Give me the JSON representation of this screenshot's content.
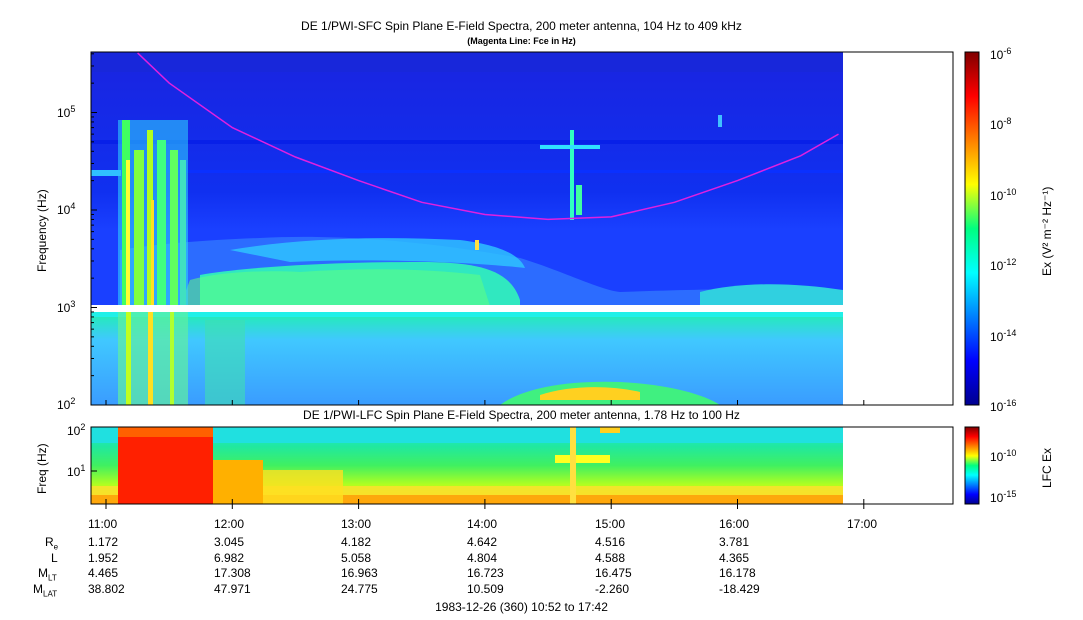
{
  "top_title": "DE 1/PWI-SFC  Spin Plane E-Field Spectra, 200 meter antenna, 104 Hz to 409 kHz",
  "top_subtitle": "(Magenta Line: Fce in Hz)",
  "bottom_title": "DE 1/PWI-LFC  Spin Plane E-Field Spectra, 200 meter antenna, 1.78 Hz to 100 Hz",
  "top_ylabel": "Frequency (Hz)",
  "bottom_ylabel": "Freq (Hz)",
  "top_cbar_label": "Ex (V² m⁻² Hz⁻¹)",
  "bottom_cbar_label": "LFC Ex",
  "footer": "1983-12-26 (360) 10:52 to 17:42",
  "chart_data": [
    {
      "type": "heatmap",
      "title": "DE 1/PWI-SFC  Spin Plane E-Field Spectra, 200 meter antenna, 104 Hz to 409 kHz",
      "subtitle": "(Magenta Line: Fce in Hz)",
      "ylabel": "Frequency (Hz)",
      "yscale": "log",
      "ylim": [
        100,
        409000
      ],
      "x_ticks": [
        "11:00",
        "12:00",
        "13:00",
        "14:00",
        "15:00",
        "16:00",
        "17:00"
      ],
      "y_ticks": [
        {
          "base": "10",
          "exp": "2",
          "value": 100
        },
        {
          "base": "10",
          "exp": "3",
          "value": 1000
        },
        {
          "base": "10",
          "exp": "4",
          "value": 10000
        },
        {
          "base": "10",
          "exp": "5",
          "value": 100000
        }
      ],
      "colorbar": {
        "label": "Ex (V² m⁻² Hz⁻¹)",
        "scale": "log",
        "range": [
          1e-16,
          1e-06
        ],
        "ticks": [
          {
            "base": "10",
            "exp": "-6"
          },
          {
            "base": "10",
            "exp": "-8"
          },
          {
            "base": "10",
            "exp": "-10"
          },
          {
            "base": "10",
            "exp": "-12"
          },
          {
            "base": "10",
            "exp": "-14"
          },
          {
            "base": "10",
            "exp": "-16"
          }
        ]
      },
      "series": [
        {
          "name": "Fce in Hz",
          "color": "#e020e0",
          "points": [
            {
              "x": "11:15",
              "y": 409000
            },
            {
              "x": "11:30",
              "y": 200000
            },
            {
              "x": "12:00",
              "y": 70000
            },
            {
              "x": "12:30",
              "y": 35000
            },
            {
              "x": "13:00",
              "y": 20000
            },
            {
              "x": "13:30",
              "y": 12000
            },
            {
              "x": "14:00",
              "y": 9000
            },
            {
              "x": "14:30",
              "y": 8000
            },
            {
              "x": "15:00",
              "y": 8500
            },
            {
              "x": "15:30",
              "y": 12000
            },
            {
              "x": "16:00",
              "y": 20000
            },
            {
              "x": "16:30",
              "y": 36000
            },
            {
              "x": "16:48",
              "y": 60000
            }
          ]
        }
      ]
    },
    {
      "type": "heatmap",
      "title": "DE 1/PWI-LFC  Spin Plane E-Field Spectra, 200 meter antenna, 1.78 Hz to 100 Hz",
      "ylabel": "Freq (Hz)",
      "yscale": "log",
      "ylim": [
        1.78,
        100
      ],
      "x_ticks": [
        "11:00",
        "12:00",
        "13:00",
        "14:00",
        "15:00",
        "16:00",
        "17:00"
      ],
      "y_ticks": [
        {
          "base": "10",
          "exp": "1",
          "value": 10
        },
        {
          "base": "10",
          "exp": "2",
          "value": 100
        }
      ],
      "colorbar": {
        "label": "LFC Ex",
        "scale": "log",
        "ticks": [
          {
            "base": "10",
            "exp": "-10"
          },
          {
            "base": "10",
            "exp": "-15"
          }
        ]
      }
    }
  ],
  "orbit_table": {
    "rows": [
      {
        "label": "R",
        "sub": "e",
        "values": [
          "1.172",
          "3.045",
          "4.182",
          "4.642",
          "4.516",
          "3.781"
        ]
      },
      {
        "label": "L",
        "sub": "",
        "values": [
          "1.952",
          "6.982",
          "5.058",
          "4.804",
          "4.588",
          "4.365"
        ]
      },
      {
        "label": "M",
        "sub": "LT",
        "values": [
          "4.465",
          "17.308",
          "16.963",
          "16.723",
          "16.475",
          "16.178"
        ]
      },
      {
        "label": "M",
        "sub": "LAT",
        "values": [
          "38.802",
          "47.971",
          "24.775",
          "10.509",
          "-2.260",
          "-18.429"
        ]
      }
    ]
  }
}
